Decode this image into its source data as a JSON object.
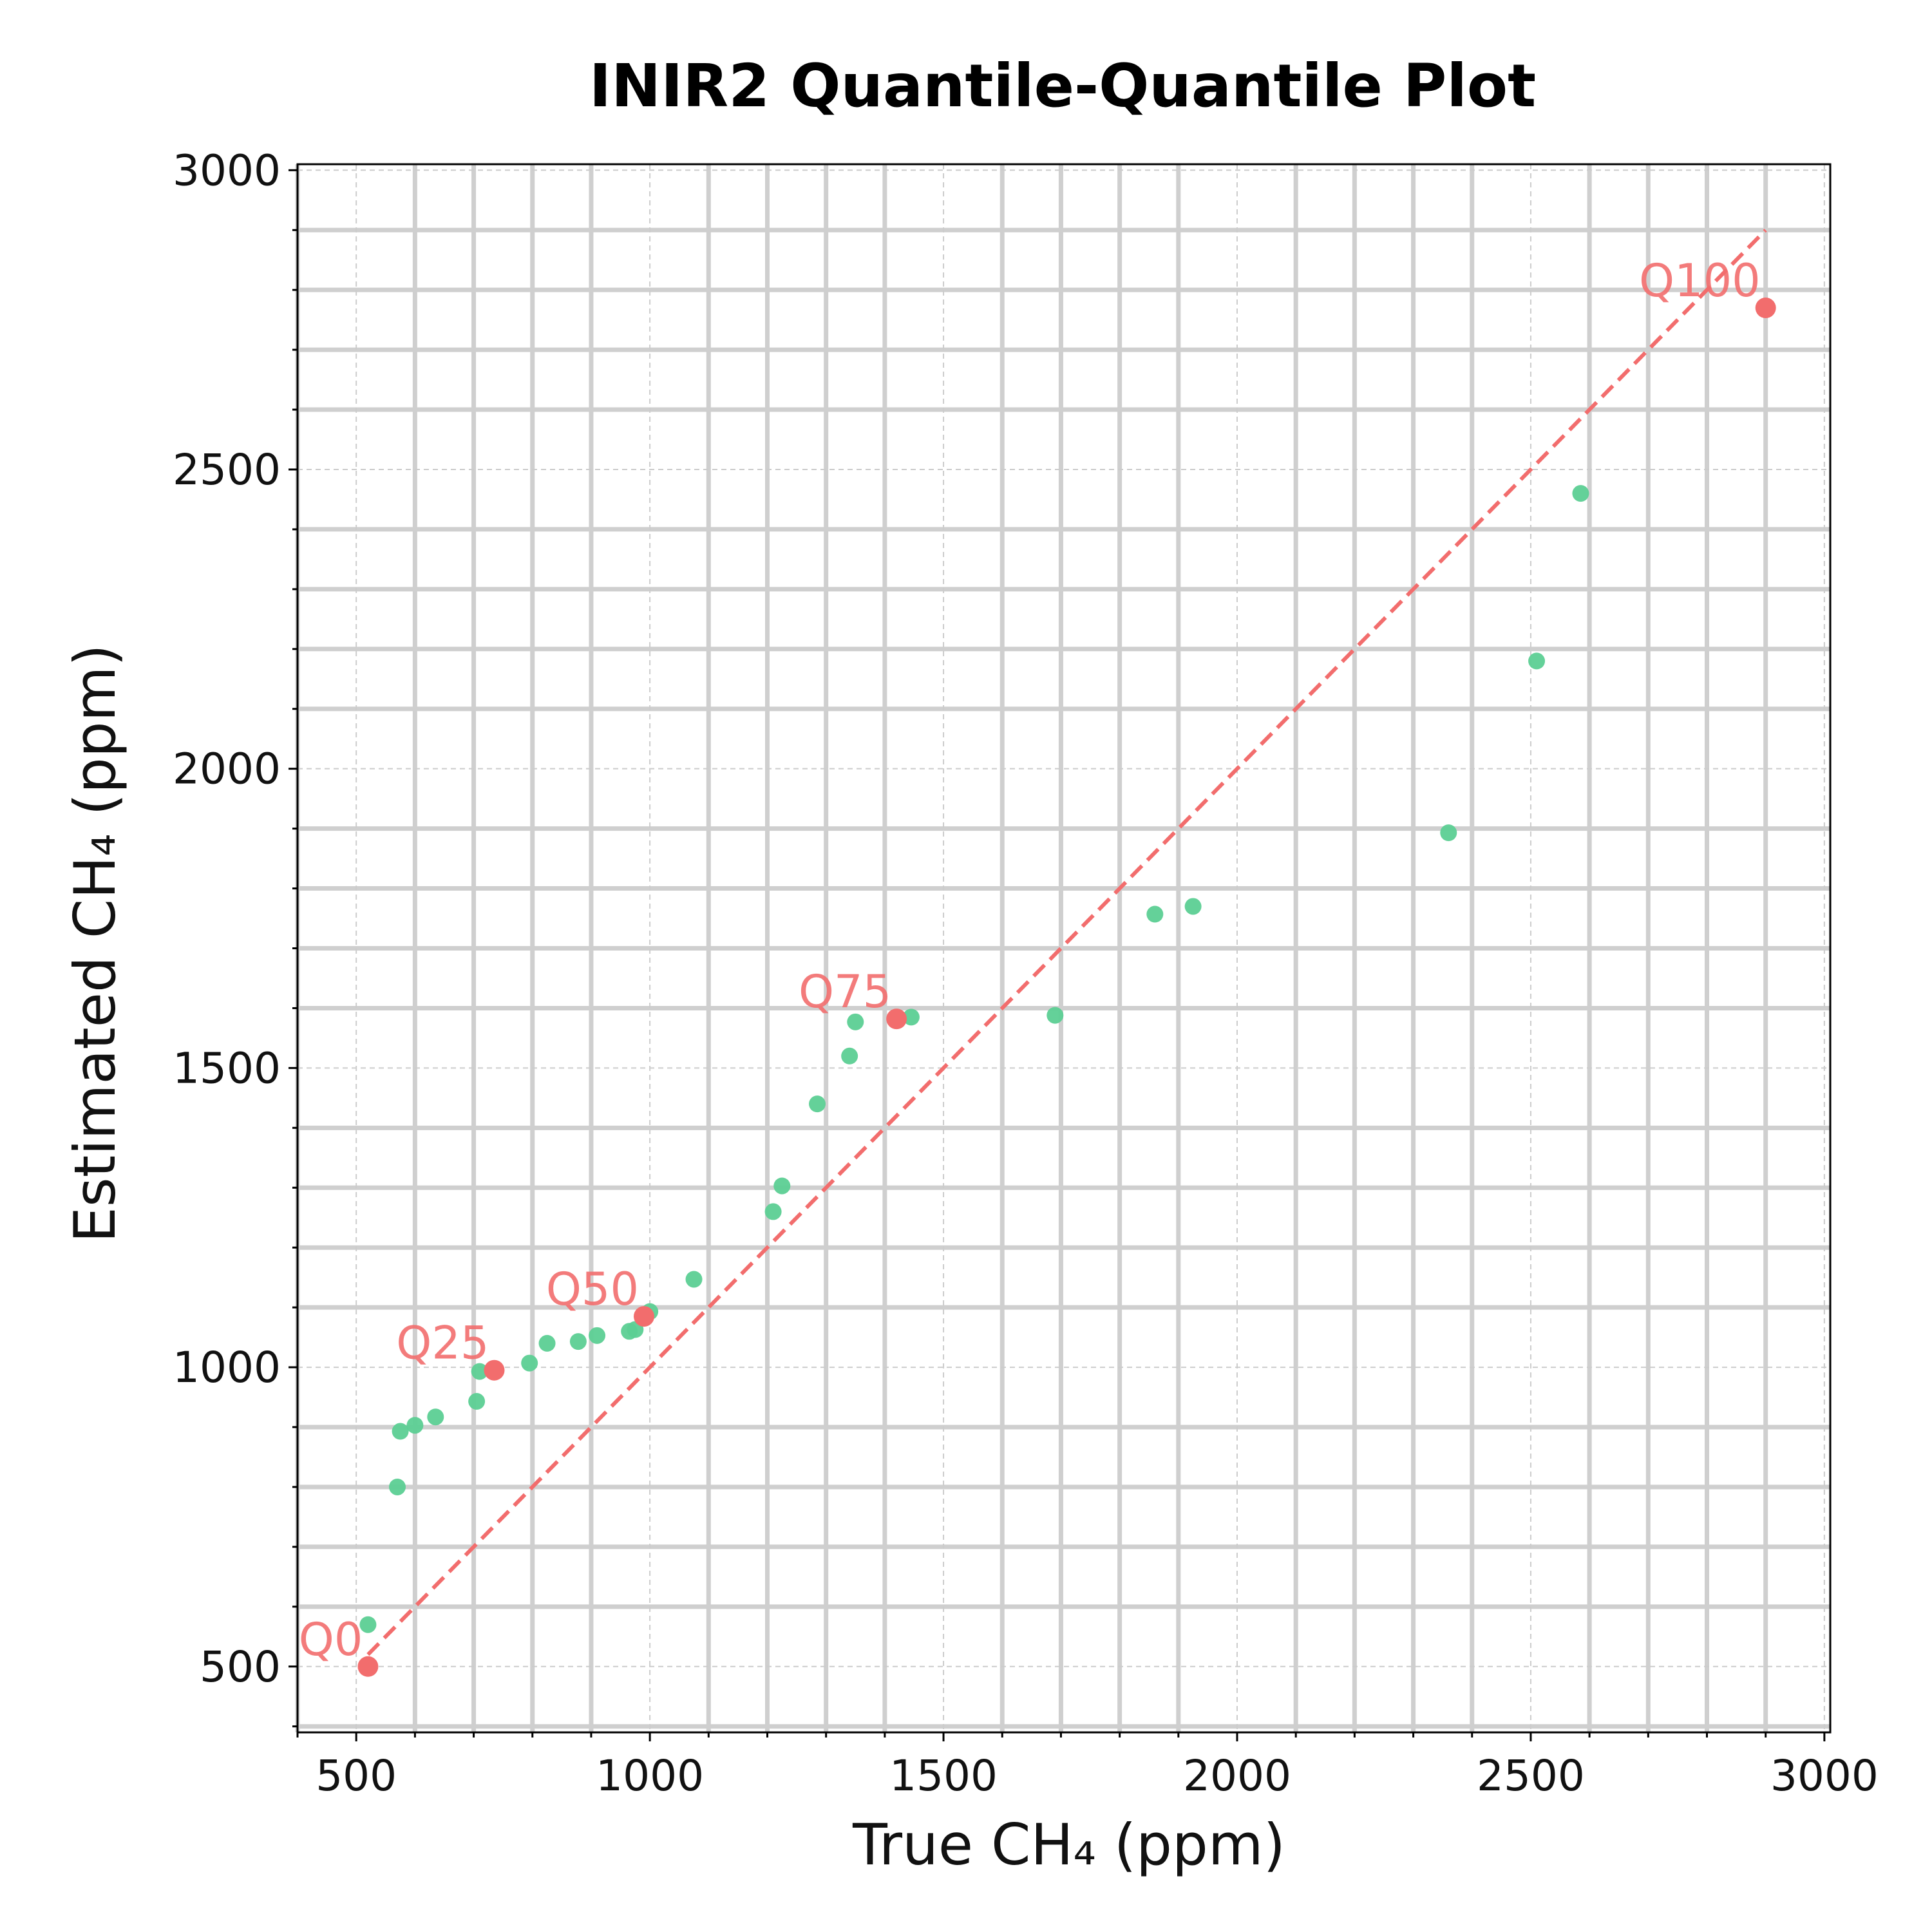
{
  "chart_data": {
    "type": "scatter",
    "title": "INIR2 Quantile-Quantile Plot",
    "xlabel": "True CH₄ (ppm)",
    "ylabel": "Estimated CH₄ (ppm)",
    "xlim": [
      400,
      3010
    ],
    "ylim": [
      390,
      3010
    ],
    "x_ticks": [
      "500",
      "1000",
      "1500",
      "2000",
      "2500",
      "3000"
    ],
    "y_ticks": [
      "500",
      "1000",
      "1500",
      "2000",
      "2500",
      "3000"
    ],
    "x_minor_step": 100,
    "y_minor_step": 100,
    "grid": true,
    "reference_line": {
      "x": [
        520,
        2900
      ],
      "y": [
        520,
        2900
      ],
      "style": "dashed"
    },
    "colors": {
      "points": "#5ccf94",
      "quantiles": "#f26d6d",
      "reference_line": "#f26d6d",
      "grid": "#cfcfcf"
    },
    "points": [
      {
        "x": 520,
        "y": 570
      },
      {
        "x": 570,
        "y": 800
      },
      {
        "x": 575,
        "y": 893
      },
      {
        "x": 600,
        "y": 903
      },
      {
        "x": 635,
        "y": 917
      },
      {
        "x": 705,
        "y": 943
      },
      {
        "x": 710,
        "y": 993
      },
      {
        "x": 795,
        "y": 1007
      },
      {
        "x": 825,
        "y": 1040
      },
      {
        "x": 878,
        "y": 1043
      },
      {
        "x": 910,
        "y": 1053
      },
      {
        "x": 965,
        "y": 1060
      },
      {
        "x": 975,
        "y": 1063
      },
      {
        "x": 1000,
        "y": 1093
      },
      {
        "x": 1075,
        "y": 1147
      },
      {
        "x": 1210,
        "y": 1260
      },
      {
        "x": 1225,
        "y": 1303
      },
      {
        "x": 1285,
        "y": 1440
      },
      {
        "x": 1340,
        "y": 1520
      },
      {
        "x": 1350,
        "y": 1577
      },
      {
        "x": 1445,
        "y": 1585
      },
      {
        "x": 1690,
        "y": 1588
      },
      {
        "x": 1860,
        "y": 1757
      },
      {
        "x": 1925,
        "y": 1770
      },
      {
        "x": 2360,
        "y": 1893
      },
      {
        "x": 2510,
        "y": 2180
      },
      {
        "x": 2585,
        "y": 2460
      }
    ],
    "quantiles": [
      {
        "label": "Q0",
        "x": 520,
        "y": 500
      },
      {
        "label": "Q25",
        "x": 735,
        "y": 995
      },
      {
        "label": "Q50",
        "x": 990,
        "y": 1085
      },
      {
        "label": "Q75",
        "x": 1420,
        "y": 1582
      },
      {
        "label": "Q100",
        "x": 2900,
        "y": 2770
      }
    ]
  }
}
